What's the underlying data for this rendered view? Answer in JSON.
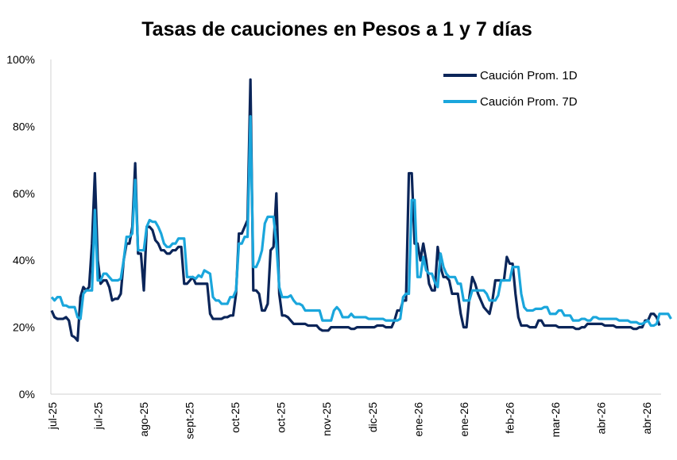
{
  "chart_data": {
    "type": "line",
    "title": "Tasas de cauciones en Pesos a 1 y 7 días",
    "xlabel": "",
    "ylabel": "",
    "ylim": [
      0,
      100
    ],
    "y_ticks": [
      "0%",
      "20%",
      "40%",
      "60%",
      "80%",
      "100%"
    ],
    "x_ticks": [
      "jul-25",
      "jul-25",
      "ago-25",
      "sept-25",
      "oct-25",
      "oct-25",
      "nov-25",
      "dic-25",
      "ene-26",
      "ene-26",
      "feb-26",
      "mar-26",
      "abr-26",
      "abr-26"
    ],
    "grid": false,
    "legend_position": "top-right",
    "series": [
      {
        "name": "Caución Prom. 1D",
        "color": "#0b2559",
        "values": [
          25,
          23,
          22.5,
          22.5,
          22.5,
          23,
          22,
          17.5,
          17,
          16,
          29,
          32,
          31,
          32,
          45,
          66,
          40,
          33,
          34,
          34,
          32,
          28,
          28.5,
          28.5,
          30,
          40,
          45,
          45,
          50,
          69,
          42,
          42,
          31,
          50,
          50,
          49,
          46,
          45,
          43,
          43,
          42,
          42,
          43,
          43,
          44,
          44,
          33,
          33,
          34,
          35,
          33,
          33,
          33,
          33,
          33,
          24,
          22.5,
          22.5,
          22.5,
          22.5,
          23,
          23,
          23.5,
          23.5,
          30,
          48,
          48,
          50,
          52,
          94,
          31,
          31,
          30,
          25,
          25,
          27,
          43,
          44,
          60,
          30,
          23.5,
          23.5,
          23,
          22,
          21,
          21,
          21,
          21,
          21,
          20.5,
          20.5,
          20.5,
          20.5,
          19.5,
          19,
          19,
          19,
          20,
          20,
          20,
          20,
          20,
          20,
          20,
          19.5,
          19.5,
          20,
          20,
          20,
          20,
          20,
          20,
          20,
          20.5,
          20.5,
          20.5,
          20,
          20,
          20,
          22,
          25,
          25,
          28,
          28,
          66,
          66,
          45,
          45,
          40,
          45,
          40,
          33,
          31,
          31,
          44,
          38,
          35,
          35,
          34,
          30,
          30,
          30,
          24,
          20,
          20,
          29,
          35,
          33,
          30,
          28,
          26,
          25,
          24,
          28,
          34,
          34,
          34,
          34,
          41,
          39,
          39,
          30,
          23,
          20.5,
          20.5,
          20.5,
          20,
          20,
          20,
          22,
          22,
          20.5,
          20.5,
          20.5,
          20.5,
          20.5,
          20,
          20,
          20,
          20,
          20,
          20,
          19.5,
          19.5,
          20,
          20,
          21,
          21,
          21,
          21,
          21,
          21,
          20.5,
          20.5,
          20.5,
          20.5,
          20,
          20,
          20,
          20,
          20,
          20,
          19.5,
          19.5,
          20,
          20,
          22,
          22,
          24,
          24,
          23,
          20.5
        ]
      },
      {
        "name": "Caución Prom. 7D",
        "color": "#1aa6dc",
        "values": [
          29,
          28,
          29,
          29,
          26.5,
          26.5,
          26,
          26,
          26,
          23,
          22.5,
          30,
          31,
          31,
          31,
          55,
          34,
          34,
          36,
          36,
          35,
          34,
          34,
          34,
          34.5,
          40,
          47,
          47,
          48,
          64,
          43,
          43,
          43,
          50,
          52,
          51.5,
          51.5,
          50,
          48,
          45,
          44,
          44,
          45,
          45,
          46.5,
          46.5,
          46.5,
          35,
          35,
          35,
          34.5,
          35.5,
          35,
          37,
          36.5,
          36,
          29,
          28,
          28,
          27,
          27,
          27,
          29,
          29,
          31,
          45,
          45,
          47,
          47,
          83,
          38,
          38,
          40,
          43,
          51,
          53,
          53,
          53,
          45,
          32,
          29,
          29,
          29,
          29.5,
          28,
          27,
          27,
          26.5,
          25,
          25,
          25,
          25,
          25,
          25,
          22,
          22,
          22,
          22,
          25,
          26,
          25,
          23,
          23,
          23,
          24,
          23,
          23,
          23,
          23,
          23,
          22.5,
          22.5,
          22.5,
          22.5,
          22.5,
          22.5,
          22,
          22,
          22,
          22,
          22,
          22.5,
          29,
          30,
          30,
          58,
          58,
          35,
          35,
          41,
          37,
          36,
          36,
          33.5,
          32,
          42,
          38,
          36,
          35,
          35,
          35,
          33,
          33,
          28,
          28,
          28,
          31,
          31,
          31,
          31,
          31,
          30,
          28,
          28,
          28,
          29.5,
          34,
          34,
          34,
          34,
          38,
          38,
          38,
          30,
          26,
          25,
          25,
          25,
          25.5,
          25.5,
          25.5,
          26,
          26,
          24,
          24,
          24,
          25,
          25,
          23.5,
          23.5,
          23.5,
          22,
          22,
          22,
          22.5,
          22.5,
          22,
          22,
          23,
          23,
          22.5,
          22.5,
          22.5,
          22.5,
          22.5,
          22.5,
          22.5,
          22,
          22,
          22,
          22,
          21.5,
          21.5,
          21.5,
          21,
          21,
          21.5,
          22,
          20.5,
          20.5,
          21,
          24,
          24,
          24,
          24,
          22.5
        ]
      }
    ]
  }
}
